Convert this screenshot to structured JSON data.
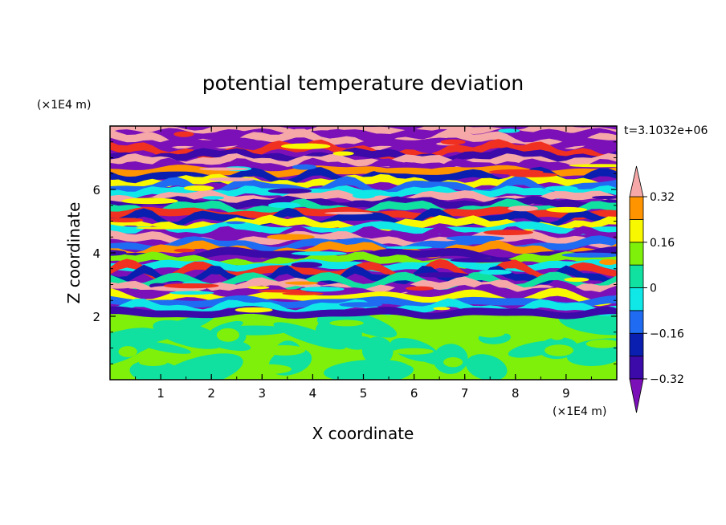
{
  "chart_data": {
    "type": "heatmap",
    "title": "potential temperature deviation",
    "xlabel": "X coordinate",
    "ylabel": "Z coordinate",
    "x_unit": "(×1E4 m)",
    "y_unit": "(×1E4 m)",
    "time_label": "t=3.1032e+06",
    "xlim": [
      0,
      10
    ],
    "ylim": [
      0,
      8
    ],
    "x_ticks": [
      1,
      2,
      3,
      4,
      5,
      6,
      7,
      8,
      9
    ],
    "y_ticks": [
      2,
      4,
      6
    ],
    "x_tick_labels": [
      "1",
      "2",
      "3",
      "4",
      "5",
      "6",
      "7",
      "8",
      "9"
    ],
    "y_tick_labels": [
      "2",
      "4",
      "6"
    ],
    "colorbar": {
      "levels": [
        -0.4,
        -0.32,
        -0.24,
        -0.16,
        -0.08,
        0,
        0.08,
        0.16,
        0.24,
        0.32,
        0.4
      ],
      "labeled_levels": [
        "0.32",
        "0.16",
        "0",
        "−0.16",
        "−0.32"
      ],
      "labeled_values": [
        0.32,
        0.16,
        0,
        -0.16,
        -0.32
      ],
      "colors_low_to_high": [
        "#7b10b8",
        "#3b0aa8",
        "#0a1fb0",
        "#1f6cf2",
        "#10e8e8",
        "#10e0a0",
        "#7ef00a",
        "#f8f800",
        "#ff9400",
        "#f03020",
        "#f6a8a8"
      ],
      "extend": "both"
    },
    "regions": [
      {
        "z_range": [
          0,
          2
        ],
        "description_value": "near-zero deviation (green/teal blobs)"
      },
      {
        "z_range": [
          2,
          8
        ],
        "description_value": "horizontally stratified layers of alternating positive (pink/red) and negative (purple/blue) deviation"
      }
    ]
  }
}
